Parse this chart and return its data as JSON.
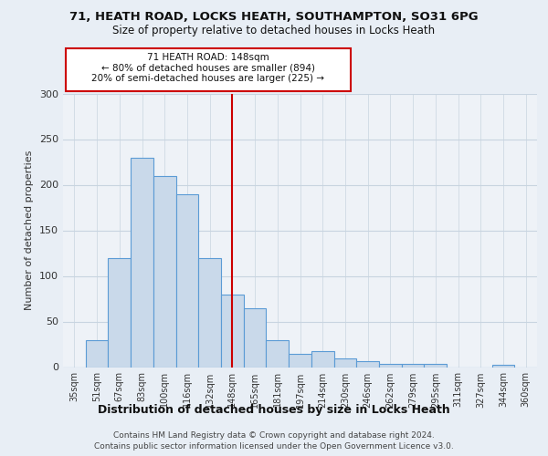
{
  "title1": "71, HEATH ROAD, LOCKS HEATH, SOUTHAMPTON, SO31 6PG",
  "title2": "Size of property relative to detached houses in Locks Heath",
  "xlabel": "Distribution of detached houses by size in Locks Heath",
  "ylabel": "Number of detached properties",
  "footer1": "Contains HM Land Registry data © Crown copyright and database right 2024.",
  "footer2": "Contains public sector information licensed under the Open Government Licence v3.0.",
  "categories": [
    "35sqm",
    "51sqm",
    "67sqm",
    "83sqm",
    "100sqm",
    "116sqm",
    "132sqm",
    "148sqm",
    "165sqm",
    "181sqm",
    "197sqm",
    "214sqm",
    "230sqm",
    "246sqm",
    "262sqm",
    "279sqm",
    "295sqm",
    "311sqm",
    "327sqm",
    "344sqm",
    "360sqm"
  ],
  "values": [
    0,
    30,
    120,
    230,
    210,
    190,
    120,
    80,
    65,
    30,
    15,
    18,
    10,
    7,
    4,
    4,
    4,
    0,
    0,
    3,
    0
  ],
  "bar_color": "#c9d9ea",
  "bar_edge_color": "#5b9bd5",
  "highlight_index": 7,
  "highlight_line_color": "#cc0000",
  "annotation_title": "71 HEATH ROAD: 148sqm",
  "annotation_line1": "← 80% of detached houses are smaller (894)",
  "annotation_line2": "20% of semi-detached houses are larger (225) →",
  "annotation_box_color": "#ffffff",
  "annotation_box_edge": "#cc0000",
  "ylim": [
    0,
    300
  ],
  "yticks": [
    0,
    50,
    100,
    150,
    200,
    250,
    300
  ],
  "background_color": "#e8eef5",
  "plot_bg_color": "#eef2f7",
  "grid_color": "#c8d4e0"
}
